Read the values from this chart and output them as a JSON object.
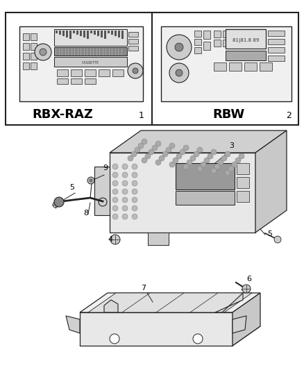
{
  "bg": "#ffffff",
  "label1": "RBX-RAZ",
  "label2": "RBW",
  "num1": "1",
  "num2": "2",
  "lc": "#222222",
  "fc_light": "#f5f5f5",
  "fc_mid": "#dddddd",
  "fc_dark": "#aaaaaa",
  "fc_vdark": "#888888"
}
